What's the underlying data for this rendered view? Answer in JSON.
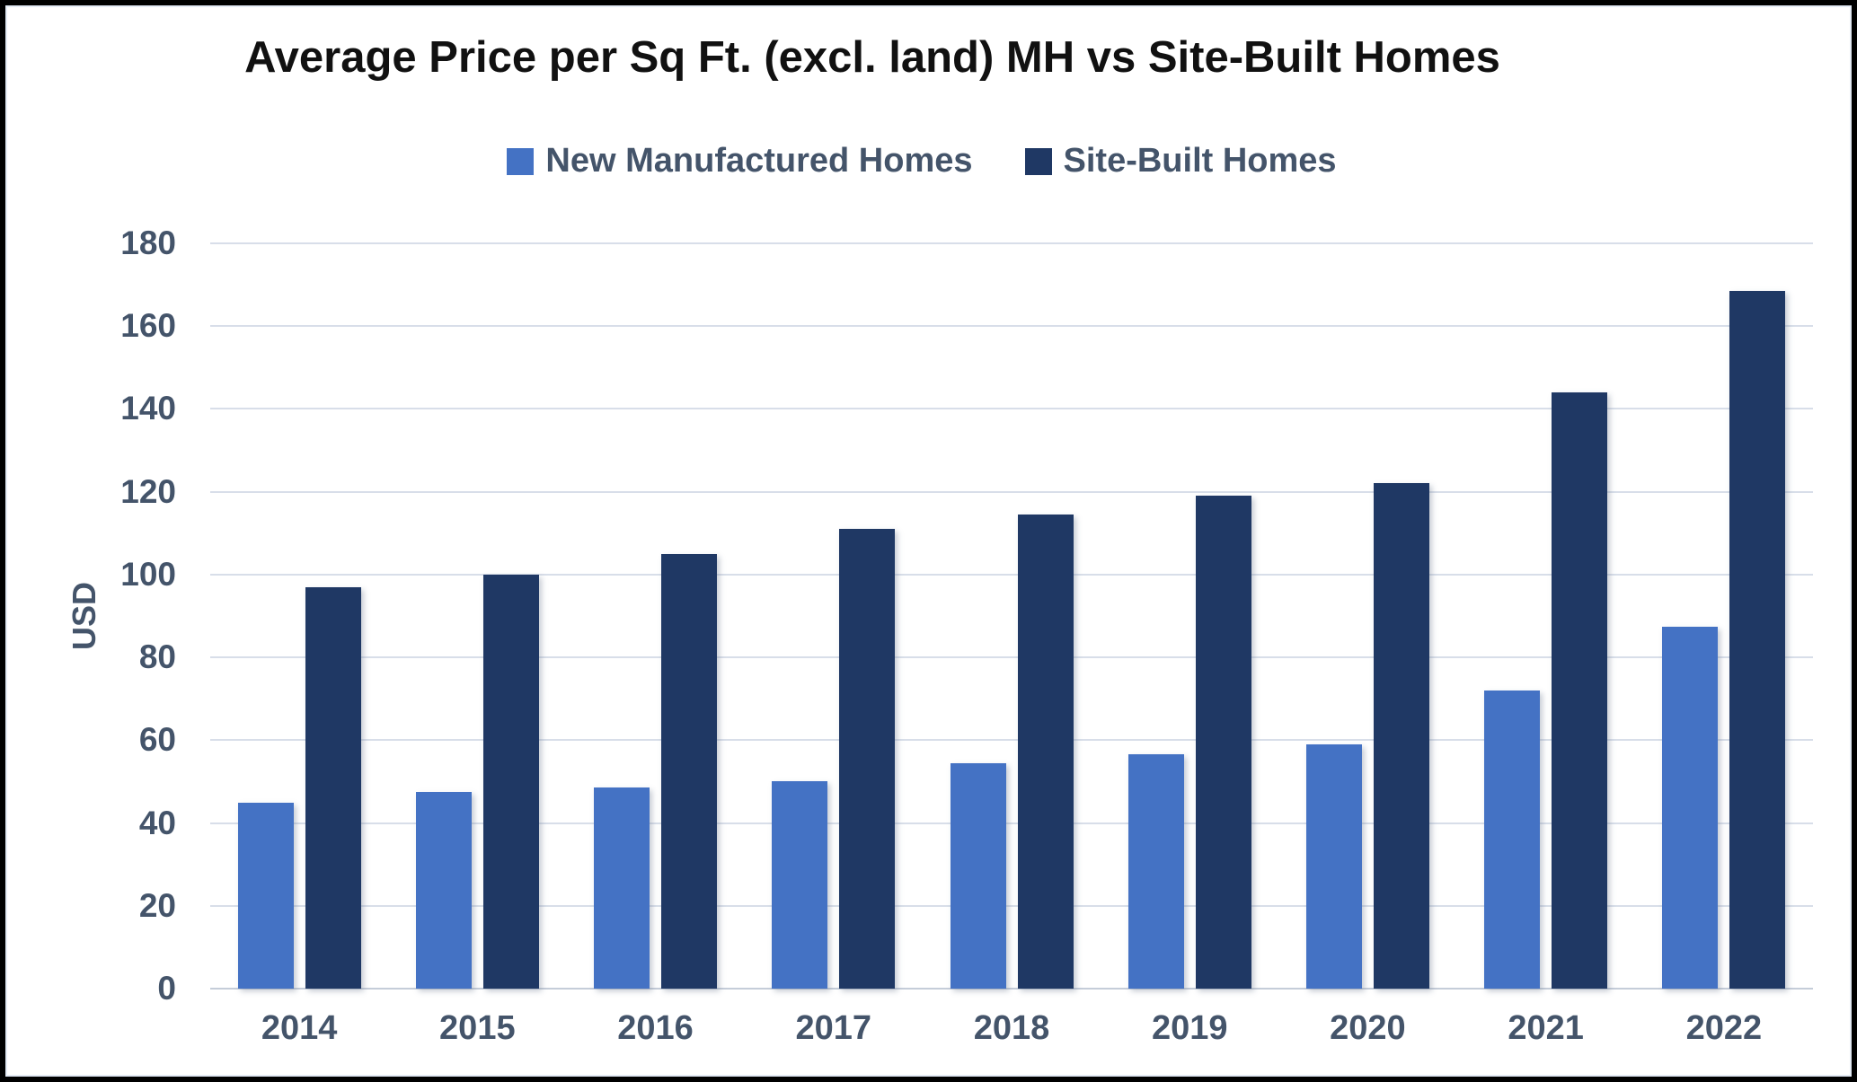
{
  "chart_data": {
    "type": "bar",
    "title": "Average Price per Sq Ft. (excl. land) MH vs Site-Built Homes",
    "xlabel": "",
    "ylabel": "USD",
    "categories": [
      "2014",
      "2015",
      "2016",
      "2017",
      "2018",
      "2019",
      "2020",
      "2021",
      "2022"
    ],
    "series": [
      {
        "name": "New Manufactured Homes",
        "color": "#4472C4",
        "values": [
          45,
          47.5,
          48.5,
          50,
          54.5,
          56.5,
          59,
          72,
          87.5
        ]
      },
      {
        "name": "Site-Built Homes",
        "color": "#1F3864",
        "values": [
          97,
          100,
          105,
          111,
          114.5,
          119,
          122,
          144,
          168.5
        ]
      }
    ],
    "ylim": [
      0,
      180
    ],
    "y_ticks": [
      0,
      20,
      40,
      60,
      80,
      100,
      120,
      140,
      160,
      180
    ],
    "grid": true,
    "legend_position": "top",
    "styles": {
      "grid_color": "#D8DEE9",
      "baseline_color": "#C5CDD9",
      "tick_color": "#44546A",
      "title_color": "#111111",
      "background": "#FFFFFF",
      "frame_border": "#000000"
    }
  }
}
